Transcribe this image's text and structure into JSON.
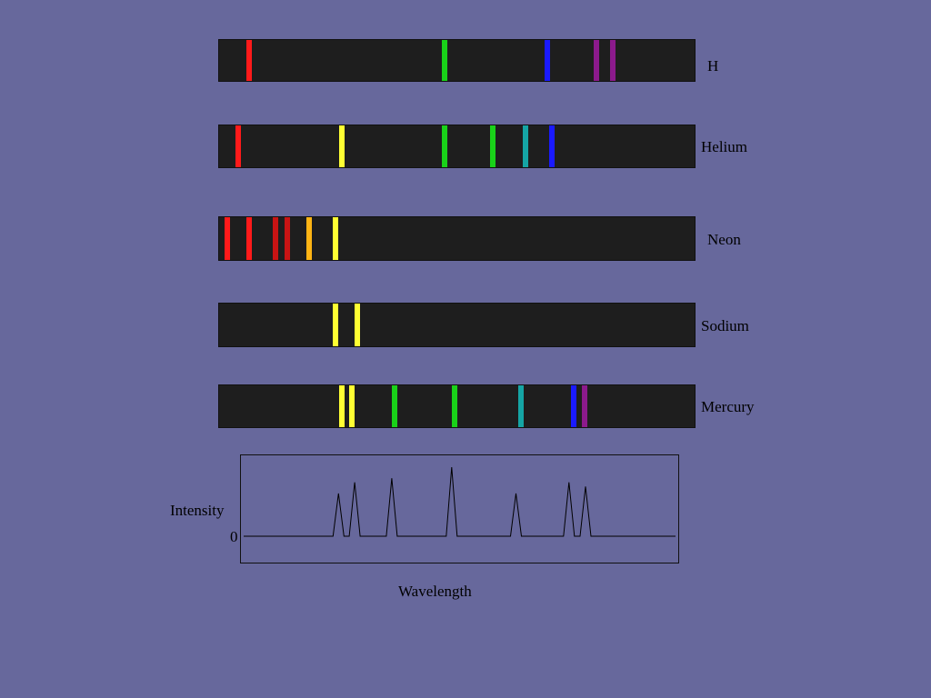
{
  "spectra": [
    {
      "id": "hydrogen",
      "label": "H",
      "lines": [
        {
          "pos": 0.063,
          "color": "#ff1a1a"
        },
        {
          "pos": 0.472,
          "color": "#19d219"
        },
        {
          "pos": 0.688,
          "color": "#1a1aff"
        },
        {
          "pos": 0.791,
          "color": "#8c1a8c"
        },
        {
          "pos": 0.824,
          "color": "#8c1a8c"
        }
      ]
    },
    {
      "id": "helium",
      "label": "Helium",
      "lines": [
        {
          "pos": 0.04,
          "color": "#ff1a1a"
        },
        {
          "pos": 0.257,
          "color": "#ffff33"
        },
        {
          "pos": 0.472,
          "color": "#19d219"
        },
        {
          "pos": 0.574,
          "color": "#19d219"
        },
        {
          "pos": 0.642,
          "color": "#15a5a5"
        },
        {
          "pos": 0.697,
          "color": "#1a1aff"
        }
      ]
    },
    {
      "id": "neon",
      "label": "Neon",
      "lines": [
        {
          "pos": 0.017,
          "color": "#ff1a1a"
        },
        {
          "pos": 0.063,
          "color": "#ff1a1a"
        },
        {
          "pos": 0.118,
          "color": "#c81414"
        },
        {
          "pos": 0.143,
          "color": "#c81414"
        },
        {
          "pos": 0.189,
          "color": "#ffb414"
        },
        {
          "pos": 0.244,
          "color": "#ffff33"
        }
      ]
    },
    {
      "id": "sodium",
      "label": "Sodium",
      "lines": [
        {
          "pos": 0.244,
          "color": "#ffff33"
        },
        {
          "pos": 0.289,
          "color": "#ffff33"
        }
      ]
    },
    {
      "id": "mercury",
      "label": "Mercury",
      "lines": [
        {
          "pos": 0.257,
          "color": "#ffff33"
        },
        {
          "pos": 0.278,
          "color": "#ffff33"
        },
        {
          "pos": 0.368,
          "color": "#19d219"
        },
        {
          "pos": 0.493,
          "color": "#19d219"
        },
        {
          "pos": 0.632,
          "color": "#15a5a5"
        },
        {
          "pos": 0.743,
          "color": "#1a1aff"
        },
        {
          "pos": 0.766,
          "color": "#8c1a8c"
        }
      ]
    }
  ],
  "profile": {
    "y_label": "Intensity",
    "zero_label": "0",
    "x_label": "Wavelength",
    "peaks": [
      {
        "pos": 0.223,
        "height": 0.62
      },
      {
        "pos": 0.26,
        "height": 0.78
      },
      {
        "pos": 0.345,
        "height": 0.84
      },
      {
        "pos": 0.482,
        "height": 1.0
      },
      {
        "pos": 0.629,
        "height": 0.62
      },
      {
        "pos": 0.75,
        "height": 0.78
      },
      {
        "pos": 0.788,
        "height": 0.72
      }
    ]
  }
}
